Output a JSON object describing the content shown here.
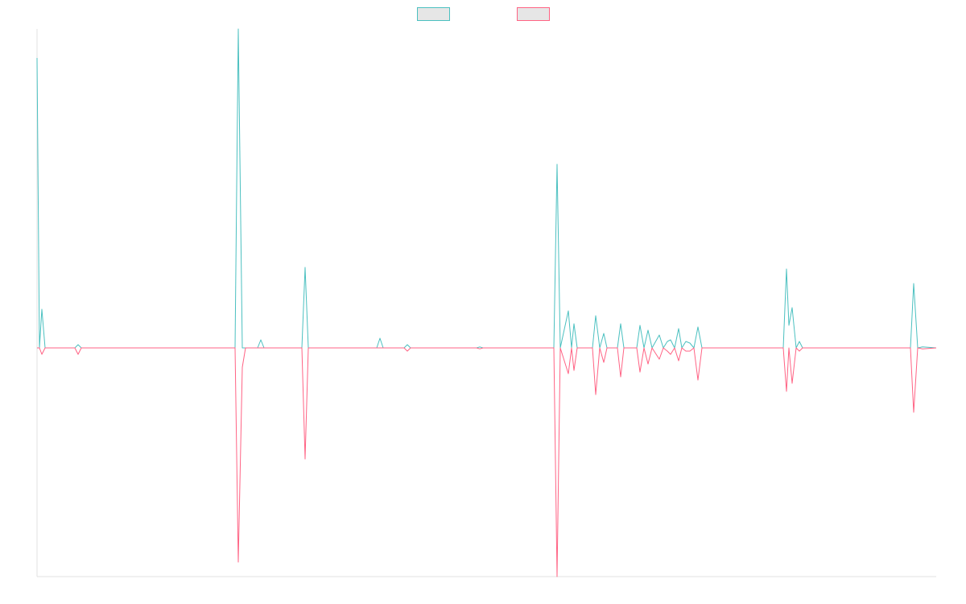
{
  "chart_data": {
    "type": "line",
    "x": [
      0,
      3,
      6,
      10,
      47,
      51,
      55,
      246,
      250,
      255,
      259,
      274,
      278,
      282,
      329,
      333,
      337,
      422,
      426,
      430,
      456,
      460,
      464,
      546,
      550,
      554,
      642,
      646,
      650,
      660,
      664,
      667,
      671,
      690,
      694,
      699,
      704,
      708,
      721,
      725,
      729,
      745,
      749,
      754,
      759,
      764,
      773,
      778,
      783,
      787,
      792,
      797,
      801,
      806,
      811,
      816,
      821,
      826,
      927,
      931,
      934,
      938,
      943,
      947,
      951,
      1085,
      1089,
      1094,
      1100,
      1117
    ],
    "series": [
      {
        "color": "#4bc0c0",
        "values": [
          90,
          0,
          12,
          0,
          0,
          1,
          0,
          0,
          99,
          0,
          0,
          0,
          2.5,
          0,
          0,
          25,
          0,
          0,
          3,
          0,
          0,
          1,
          0,
          0,
          0.3,
          0,
          0,
          57,
          0,
          11.5,
          0,
          7.5,
          0,
          0,
          10,
          0,
          4.5,
          0,
          0,
          7.5,
          0,
          0,
          7,
          0,
          5.5,
          0,
          4,
          0,
          2,
          2.5,
          0,
          6,
          0,
          2,
          1.5,
          0,
          6.5,
          0,
          0,
          24.5,
          7,
          12.5,
          0,
          2,
          0,
          0,
          20,
          0,
          0.3,
          0
        ]
      },
      {
        "color": "#ff6384",
        "values": [
          0,
          0,
          -2,
          0,
          0,
          -2,
          0,
          0,
          -66.5,
          -6,
          0,
          0,
          0,
          0,
          0,
          -34.5,
          0,
          0,
          0,
          0,
          0,
          -1,
          0,
          0,
          -0.3,
          0,
          0,
          -71,
          0,
          -8,
          0,
          -7,
          0,
          0,
          -14.5,
          0,
          -4.5,
          0,
          0,
          -9,
          0,
          0,
          -7.5,
          0,
          -5,
          0,
          -3.5,
          0,
          -1,
          -2,
          0,
          -4,
          0,
          -1,
          -1,
          0,
          -10,
          0,
          0,
          -13.5,
          0,
          -11,
          0,
          -1,
          0,
          0,
          -20,
          0,
          -0.3,
          0
        ]
      }
    ],
    "xlim": [
      0,
      1117
    ],
    "ylim": [
      -71,
      99
    ],
    "legend": "top"
  }
}
